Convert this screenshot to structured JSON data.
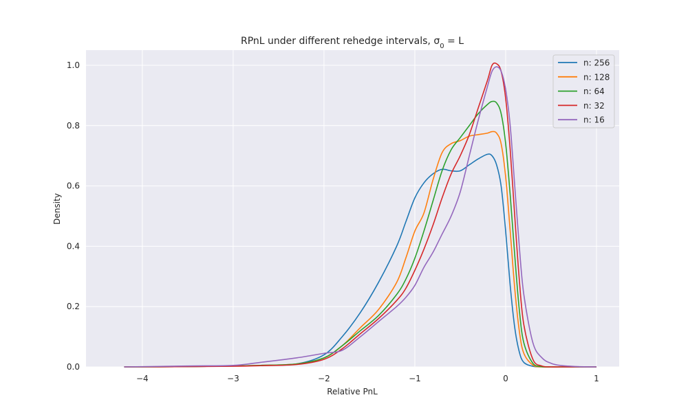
{
  "chart_data": {
    "type": "line",
    "title": "RPnL under different rehedge intervals, σ",
    "title_sub": "0",
    "title_tail": " = L",
    "xlabel": "Relative PnL",
    "ylabel": "Density",
    "xlim": [
      -4.62,
      1.25
    ],
    "ylim": [
      0,
      1.05
    ],
    "grid": true,
    "legend_position": "top-right",
    "xticks": [
      -4,
      -3,
      -2,
      -1,
      0,
      1
    ],
    "xtick_labels": [
      "−4",
      "−3",
      "−2",
      "−1",
      "0",
      "1"
    ],
    "yticks": [
      0.0,
      0.2,
      0.4,
      0.6,
      0.8,
      1.0
    ],
    "ytick_labels": [
      "0.0",
      "0.2",
      "0.4",
      "0.6",
      "0.8",
      "1.0"
    ],
    "x": [
      -4.2,
      -3.5,
      -3.0,
      -2.7,
      -2.3,
      -2.0,
      -1.8,
      -1.6,
      -1.4,
      -1.2,
      -1.1,
      -1.0,
      -0.9,
      -0.8,
      -0.7,
      -0.6,
      -0.5,
      -0.4,
      -0.3,
      -0.2,
      -0.15,
      -0.1,
      -0.05,
      0.0,
      0.05,
      0.1,
      0.15,
      0.2,
      0.3,
      0.4,
      0.5,
      0.6,
      0.8,
      1.0
    ],
    "series": [
      {
        "name": "n: 256",
        "color": "#1f77b4",
        "values": [
          0,
          0.001,
          0.003,
          0.005,
          0.01,
          0.04,
          0.1,
          0.18,
          0.28,
          0.4,
          0.48,
          0.56,
          0.61,
          0.64,
          0.655,
          0.65,
          0.65,
          0.67,
          0.69,
          0.705,
          0.7,
          0.67,
          0.6,
          0.45,
          0.27,
          0.13,
          0.05,
          0.015,
          0.002,
          0,
          0,
          0,
          0,
          0
        ]
      },
      {
        "name": "n: 128",
        "color": "#ff7f0e",
        "values": [
          0,
          0.001,
          0.003,
          0.005,
          0.01,
          0.03,
          0.07,
          0.13,
          0.19,
          0.28,
          0.36,
          0.45,
          0.51,
          0.62,
          0.71,
          0.74,
          0.75,
          0.765,
          0.77,
          0.775,
          0.78,
          0.775,
          0.74,
          0.63,
          0.45,
          0.26,
          0.12,
          0.045,
          0.006,
          0,
          0,
          0,
          0,
          0
        ]
      },
      {
        "name": "n: 64",
        "color": "#2ca02c",
        "values": [
          0,
          0.001,
          0.003,
          0.005,
          0.01,
          0.03,
          0.07,
          0.12,
          0.17,
          0.24,
          0.29,
          0.36,
          0.45,
          0.55,
          0.65,
          0.72,
          0.76,
          0.8,
          0.84,
          0.87,
          0.88,
          0.875,
          0.84,
          0.74,
          0.57,
          0.37,
          0.19,
          0.08,
          0.012,
          0.001,
          0,
          0,
          0,
          0
        ]
      },
      {
        "name": "n: 32",
        "color": "#d62728",
        "values": [
          0,
          0.001,
          0.002,
          0.004,
          0.008,
          0.025,
          0.06,
          0.11,
          0.16,
          0.22,
          0.26,
          0.32,
          0.39,
          0.47,
          0.56,
          0.64,
          0.7,
          0.77,
          0.86,
          0.95,
          1.0,
          1.005,
          0.98,
          0.89,
          0.72,
          0.5,
          0.29,
          0.14,
          0.025,
          0.003,
          0,
          0,
          0,
          0
        ]
      },
      {
        "name": "n: 16",
        "color": "#9467bd",
        "values": [
          0,
          0.003,
          0.005,
          0.015,
          0.03,
          0.045,
          0.055,
          0.1,
          0.15,
          0.2,
          0.23,
          0.27,
          0.33,
          0.38,
          0.44,
          0.5,
          0.58,
          0.7,
          0.82,
          0.93,
          0.98,
          0.995,
          0.98,
          0.92,
          0.8,
          0.6,
          0.4,
          0.24,
          0.08,
          0.03,
          0.012,
          0.005,
          0.001,
          0
        ]
      }
    ]
  }
}
